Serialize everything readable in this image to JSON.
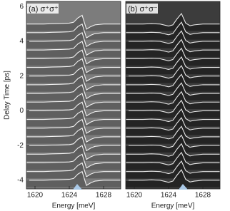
{
  "chart_data": [
    {
      "type": "waterfall",
      "panel_label": "(a) σ⁺σ⁺",
      "background": "#7c7c7c",
      "fill_color": "#5a5a5a",
      "line_color": "#f2f2f2",
      "xlabel": "Energy [meV]",
      "ylabel": "Delay Time [ps]",
      "xlim": [
        1619,
        1630
      ],
      "xticks": [
        1620,
        1624,
        1628
      ],
      "ylim": [
        -4.5,
        6.3
      ],
      "yticks": [
        -4,
        -2,
        0,
        2,
        4,
        6
      ],
      "x": [
        1619,
        1620,
        1621,
        1622,
        1623,
        1624,
        1624.5,
        1625,
        1625.5,
        1626,
        1626.5,
        1627,
        1628,
        1629,
        1630
      ],
      "values": [
        0,
        0,
        0,
        0.02,
        0.03,
        0.05,
        0.1,
        0.35,
        0.5,
        -0.3,
        -0.15,
        -0.05,
        0,
        0,
        0
      ],
      "delays": [
        -4,
        -3.5,
        -3,
        -2.5,
        -2,
        -1.5,
        -1,
        -0.5,
        0,
        0.5,
        1,
        1.5,
        2,
        2.5,
        3,
        3.5,
        4,
        4.5,
        5
      ]
    },
    {
      "type": "waterfall",
      "panel_label": "(b) σ⁺σ⁻",
      "background": "#3c3c3c",
      "fill_color": "#202020",
      "line_color": "#e8e8e8",
      "xlabel": "Energy [meV]",
      "xlim": [
        1619,
        1630
      ],
      "xticks": [
        1620,
        1624,
        1628
      ],
      "ylim": [
        -4.5,
        6.3
      ],
      "yticks": [
        -4,
        -2,
        0,
        2,
        4,
        6
      ],
      "x": [
        1619,
        1620,
        1621,
        1622,
        1623,
        1624,
        1624.5,
        1625,
        1625.5,
        1626,
        1626.5,
        1627,
        1628,
        1629,
        1630
      ],
      "values": [
        0,
        0,
        0,
        0.02,
        0,
        -0.12,
        -0.05,
        0.3,
        0.6,
        0.05,
        -0.1,
        -0.05,
        0,
        0,
        0
      ],
      "delays": [
        -4,
        -3.5,
        -3,
        -2.5,
        -2,
        -1.5,
        -1,
        -0.5,
        0,
        0.5,
        1,
        1.5,
        2,
        2.5,
        3,
        3.5,
        4,
        4.5,
        5
      ]
    }
  ]
}
